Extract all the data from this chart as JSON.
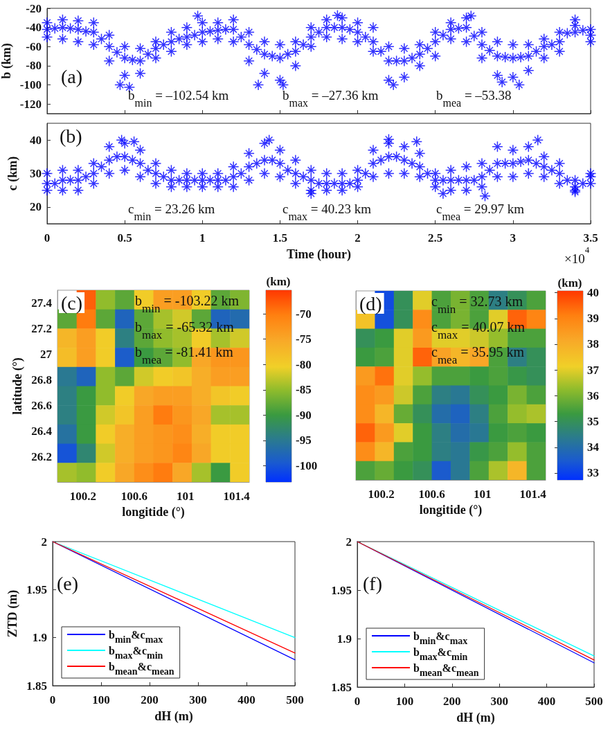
{
  "chart_data": [
    {
      "type": "scatter",
      "title": "(a)",
      "ylabel": "b (km)",
      "color": "#0000ff",
      "marker": "star",
      "xlim": [
        0,
        3.5
      ],
      "xticks": [
        0,
        0.5,
        1,
        1.5,
        2,
        2.5,
        3,
        3.5
      ],
      "ylim": [
        -130,
        -20
      ],
      "yticks": [
        -120,
        -100,
        -80,
        -60,
        -40,
        -20
      ],
      "tick_labels": "y",
      "annotations": [
        "b$_{min}$ = –102.54 km",
        "b$_{max}$ = –27.36 km",
        "b$_{mea}$ = –53.38"
      ],
      "x": [
        0,
        0,
        0,
        0.1,
        0.1,
        0.1,
        0.2,
        0.2,
        0.2,
        0.3,
        0.3,
        0.3,
        0.4,
        0.4,
        0.4,
        0.5,
        0.5,
        0.5,
        0.6,
        0.6,
        0.6,
        0.7,
        0.7,
        0.7,
        0.8,
        0.8,
        0.8,
        0.9,
        0.9,
        0.9,
        1,
        1,
        1,
        1.1,
        1.1,
        1.1,
        1.2,
        1.2,
        1.2,
        1.3,
        1.3,
        1.3,
        1.4,
        1.4,
        1.4,
        1.5,
        1.5,
        1.5,
        1.6,
        1.6,
        1.6,
        1.7,
        1.7,
        1.7,
        1.8,
        1.8,
        1.8,
        1.9,
        1.9,
        1.9,
        2,
        2,
        2,
        2.1,
        2.1,
        2.1,
        2.2,
        2.2,
        2.2,
        2.3,
        2.3,
        2.3,
        2.4,
        2.4,
        2.4,
        2.5,
        2.5,
        2.5,
        2.6,
        2.6,
        2.6,
        2.7,
        2.7,
        2.7,
        2.8,
        2.8,
        2.8,
        2.9,
        2.9,
        2.9,
        3,
        3,
        3,
        3.1,
        3.1,
        3.1,
        3.2,
        3.2,
        3.2,
        3.3,
        3.3,
        3.3,
        3.4,
        3.4,
        3.4,
        3.5,
        3.5,
        3.5,
        0.05,
        0.15,
        0.25,
        0.35,
        0.45,
        0.55,
        0.65,
        0.75,
        0.85,
        0.95,
        1.05,
        1.15,
        1.25,
        1.35,
        1.45,
        1.55,
        1.65,
        1.75,
        1.85,
        1.95,
        2.05,
        2.15,
        2.25,
        2.35,
        2.45,
        2.55,
        2.65,
        2.75,
        2.85,
        2.95,
        3.05,
        3.15,
        3.25,
        3.35,
        3.45,
        0.47,
        0.53,
        1.36,
        1.52,
        2.23,
        2.93,
        3.04,
        0.97,
        1.87,
        2.73
      ],
      "values": [
        -35,
        -42,
        -50,
        -32,
        -40,
        -52,
        -33,
        -42,
        -55,
        -35,
        -45,
        -58,
        -48,
        -60,
        -75,
        -60,
        -72,
        -90,
        -62,
        -75,
        -88,
        -55,
        -62,
        -72,
        -45,
        -55,
        -65,
        -40,
        -50,
        -58,
        -35,
        -45,
        -55,
        -35,
        -43,
        -52,
        -32,
        -42,
        -55,
        -45,
        -58,
        -75,
        -55,
        -68,
        -88,
        -58,
        -72,
        -95,
        -55,
        -65,
        -80,
        -40,
        -50,
        -60,
        -32,
        -40,
        -50,
        -30,
        -40,
        -52,
        -35,
        -45,
        -55,
        -40,
        -55,
        -65,
        -60,
        -75,
        -95,
        -62,
        -75,
        -92,
        -58,
        -68,
        -80,
        -45,
        -55,
        -70,
        -35,
        -42,
        -52,
        -30,
        -40,
        -55,
        -45,
        -58,
        -72,
        -55,
        -70,
        -90,
        -58,
        -72,
        -92,
        -58,
        -70,
        -85,
        -52,
        -60,
        -72,
        -45,
        -55,
        -65,
        -32,
        -38,
        -45,
        -42,
        -48,
        -55,
        -41,
        -41,
        -44,
        -52,
        -66,
        -74,
        -68,
        -58,
        -52,
        -48,
        -44,
        -42,
        -50,
        -63,
        -70,
        -68,
        -58,
        -45,
        -40,
        -42,
        -50,
        -65,
        -75,
        -72,
        -62,
        -48,
        -41,
        -49,
        -64,
        -71,
        -71,
        -65,
        -58,
        -46,
        -43,
        -100,
        -102.5,
        -100,
        -100,
        -100,
        -97,
        -100,
        -28,
        -27.4,
        -28
      ]
    },
    {
      "type": "scatter",
      "title": "(b)",
      "xlabel": "Time (hour)",
      "ylabel": "c (km)",
      "color": "#0000ff",
      "marker": "star",
      "xlim": [
        0,
        3.5
      ],
      "xticks": [
        0,
        0.5,
        1,
        1.5,
        2,
        2.5,
        3,
        3.5
      ],
      "ylim": [
        15,
        45
      ],
      "yticks": [
        20,
        30,
        40
      ],
      "annotations": [
        "c$_{min}$ = 23.26 km",
        "c$_{max}$ = 40.23 km",
        "c$_{mea}$ = 29.97 km",
        "×10$^{4}$"
      ],
      "x": [
        0,
        0,
        0,
        0.1,
        0.1,
        0.1,
        0.2,
        0.2,
        0.2,
        0.3,
        0.3,
        0.3,
        0.4,
        0.4,
        0.4,
        0.5,
        0.5,
        0.5,
        0.6,
        0.6,
        0.6,
        0.7,
        0.7,
        0.7,
        0.8,
        0.8,
        0.8,
        0.9,
        0.9,
        0.9,
        1,
        1,
        1,
        1.1,
        1.1,
        1.1,
        1.2,
        1.2,
        1.2,
        1.3,
        1.3,
        1.3,
        1.4,
        1.4,
        1.4,
        1.5,
        1.5,
        1.5,
        1.6,
        1.6,
        1.6,
        1.7,
        1.7,
        1.7,
        1.8,
        1.8,
        1.8,
        1.9,
        1.9,
        1.9,
        2,
        2,
        2,
        2.1,
        2.1,
        2.1,
        2.2,
        2.2,
        2.2,
        2.3,
        2.3,
        2.3,
        2.4,
        2.4,
        2.4,
        2.5,
        2.5,
        2.5,
        2.6,
        2.6,
        2.6,
        2.7,
        2.7,
        2.7,
        2.8,
        2.8,
        2.8,
        2.9,
        2.9,
        2.9,
        3,
        3,
        3,
        3.1,
        3.1,
        3.1,
        3.2,
        3.2,
        3.2,
        3.3,
        3.3,
        3.3,
        3.4,
        3.4,
        3.4,
        3.5,
        3.5,
        3.5,
        0.05,
        0.15,
        0.25,
        0.35,
        0.45,
        0.55,
        0.65,
        0.75,
        0.85,
        0.95,
        1.05,
        1.15,
        1.25,
        1.35,
        1.45,
        1.55,
        1.65,
        1.75,
        1.85,
        1.95,
        2.05,
        2.15,
        2.25,
        2.35,
        2.45,
        2.55,
        2.65,
        2.75,
        2.85,
        2.95,
        3.05,
        3.15,
        3.25,
        3.35,
        3.45,
        0.48,
        0.56,
        1.43,
        2.2,
        2.38,
        3.16,
        1.7,
        2.55,
        2.82,
        3.4
      ],
      "values": [
        25,
        27,
        30,
        25,
        28,
        31,
        25,
        28,
        31,
        27,
        30,
        33,
        30,
        34,
        38,
        31,
        35,
        39,
        29,
        33,
        37,
        27,
        30,
        33,
        26,
        28,
        31,
        26,
        28,
        30,
        26,
        28,
        30,
        26,
        28,
        30,
        26,
        29,
        32,
        28,
        32,
        36,
        30,
        34,
        39,
        29,
        33,
        37,
        27,
        30,
        34,
        25,
        28,
        31,
        25,
        27,
        30,
        25,
        27,
        30,
        26,
        28,
        31,
        29,
        33,
        37,
        30,
        35,
        39,
        30,
        34,
        38,
        29,
        32,
        36,
        26,
        28,
        30,
        25,
        28,
        31,
        25,
        28,
        32,
        26,
        29,
        33,
        29,
        33,
        38,
        29,
        33,
        37,
        30,
        34,
        38,
        29,
        32,
        35,
        27,
        30,
        33,
        25,
        26,
        28,
        27,
        29,
        30,
        27,
        28,
        29,
        32,
        35,
        34,
        31,
        29,
        28,
        28,
        28,
        28,
        30,
        33,
        34,
        31,
        29,
        27,
        27,
        27,
        30,
        34,
        35,
        33,
        30,
        28,
        28,
        28,
        31,
        33,
        33.5,
        33,
        31,
        28,
        27,
        40,
        39.5,
        40,
        40.2,
        39.5,
        40,
        24,
        24,
        23.3,
        24.5
      ]
    },
    {
      "type": "heatmap",
      "title": "(c)",
      "xlabel": "longitide (°)",
      "ylabel": "latitude (°)",
      "clabel": "(km)",
      "xlim": [
        100,
        101.5
      ],
      "xticks": [
        100.2,
        100.6,
        101,
        101.4
      ],
      "ylim": [
        26,
        27.5
      ],
      "yticks": [
        26.2,
        26.4,
        26.6,
        26.8,
        27,
        27.2,
        27.4
      ],
      "clim": [
        -103.22,
        -65.32
      ],
      "cticks": [
        -100,
        -95,
        -90,
        -85,
        -80,
        -75,
        -70
      ],
      "annotations": [
        "b$_{min}$ = -103.22 km",
        "b$_{max}$ = -65.32 km",
        "b$_{mea}$ = -81.41 km"
      ],
      "cells": [
        [
          null,
          -68,
          -85,
          -88,
          -80,
          -74,
          -74,
          -80,
          -88,
          -86
        ],
        [
          -88,
          -70,
          -88,
          -98,
          -88,
          -84,
          -82,
          -88,
          -98,
          -97
        ],
        [
          -77,
          -74,
          -80,
          -94,
          -88,
          -85,
          -84,
          -80,
          -84,
          -82
        ],
        [
          -78,
          -74,
          -80,
          -99,
          -90,
          -88,
          -85,
          -75,
          -73,
          -73
        ],
        [
          -95,
          -98,
          -85,
          -88,
          -82,
          -80,
          -79,
          -76,
          -74,
          -74
        ],
        [
          -94,
          -90,
          -85,
          -80,
          -75,
          -74,
          -74,
          -76,
          -79,
          -80
        ],
        [
          -94,
          -90,
          -82,
          -79,
          -74,
          -70,
          -73,
          -75,
          -84,
          -84
        ],
        [
          -96,
          -90,
          -80,
          -76,
          -74,
          -73,
          -72,
          -76,
          -80,
          -80
        ],
        [
          -100,
          -93,
          -82,
          -76,
          -74,
          -73,
          -71,
          -75,
          -80,
          -80
        ],
        [
          -84,
          -85,
          -80,
          -75,
          -72,
          -70,
          -75,
          -84,
          -90,
          -80
        ]
      ]
    },
    {
      "type": "heatmap",
      "title": "(d)",
      "xlabel": "longitide (°)",
      "clabel": "(km)",
      "xlim": [
        100,
        101.5
      ],
      "xticks": [
        100.2,
        100.6,
        101,
        101.4
      ],
      "ylim": [
        26,
        27.5
      ],
      "yticks": [
        26.2,
        26.4,
        26.6,
        26.8,
        27,
        27.2,
        27.4
      ],
      "tick_labels": "x",
      "clim": [
        32.73,
        40.07
      ],
      "cticks": [
        33,
        34,
        35,
        36,
        37,
        38,
        39,
        40
      ],
      "annotations": [
        "c$_{min}$ = 32.73 km",
        "c$_{max}$ = 40.07 km",
        "c$_{mea}$ = 35.95 km"
      ],
      "cells": [
        [
          null,
          33.2,
          35,
          37,
          35.5,
          36,
          35.5,
          34.5,
          35,
          35.5
        ],
        [
          37.5,
          33.3,
          35,
          38.8,
          35.5,
          36,
          35.5,
          37,
          39.5,
          39
        ],
        [
          35,
          35.3,
          37,
          38.5,
          37,
          37,
          36.8,
          36.3,
          35.5,
          35.5
        ],
        [
          35.3,
          35.5,
          37,
          39.5,
          38.3,
          37.8,
          38.2,
          35.5,
          34.5,
          35
        ],
        [
          38.5,
          39.3,
          37,
          36.3,
          35.5,
          35.5,
          35.3,
          35.5,
          35.2,
          35
        ],
        [
          38.8,
          38.5,
          36.8,
          35.5,
          34.5,
          34.3,
          35,
          35.3,
          36,
          35.5
        ],
        [
          38.8,
          37.8,
          35.8,
          35,
          34,
          33.7,
          34.5,
          35.5,
          36.3,
          36.5
        ],
        [
          39.5,
          38.5,
          37,
          35.3,
          34.5,
          34,
          34.3,
          35.3,
          35.5,
          35.3
        ],
        [
          38.8,
          37.8,
          35.5,
          35.3,
          34.5,
          34.3,
          35.2,
          35.5,
          36.3,
          35.5
        ],
        [
          35.5,
          35.8,
          35.3,
          35,
          33.5,
          34.3,
          35.5,
          36.5,
          37.8,
          35.5
        ]
      ]
    },
    {
      "type": "line",
      "title": "(e)",
      "xlabel": "dH (m)",
      "ylabel": "ZTD (m)",
      "x": [
        0,
        500
      ],
      "xlim": [
        0,
        500
      ],
      "xticks": [
        0,
        100,
        200,
        300,
        400,
        500
      ],
      "ylim": [
        1.85,
        2
      ],
      "yticks": [
        1.85,
        1.9,
        1.95,
        2
      ],
      "legend": "bottom left",
      "series": [
        {
          "name": "b$_{min}$&c$_{max}$",
          "color": "#0000ff",
          "values": [
            2,
            1.877
          ]
        },
        {
          "name": "b$_{max}$&c$_{min}$",
          "color": "#00ffff",
          "values": [
            2,
            1.9
          ]
        },
        {
          "name": "b$_{mean}$&c$_{mean}$",
          "color": "#ff0000",
          "values": [
            2,
            1.884
          ]
        }
      ]
    },
    {
      "type": "line",
      "title": "(f)",
      "xlabel": "dH (m)",
      "x": [
        0,
        500
      ],
      "xlim": [
        0,
        500
      ],
      "xticks": [
        0,
        100,
        200,
        300,
        400,
        500
      ],
      "ylim": [
        1.85,
        2
      ],
      "yticks": [
        1.85,
        1.9,
        1.95,
        2
      ],
      "legend": "bottom left",
      "series": [
        {
          "name": "b$_{min}$&c$_{max}$",
          "color": "#0000ff",
          "values": [
            2,
            1.875
          ]
        },
        {
          "name": "b$_{max}$&c$_{min}$",
          "color": "#00ffff",
          "values": [
            2,
            1.882
          ]
        },
        {
          "name": "b$_{mean}$&c$_{mean}$",
          "color": "#ff0000",
          "values": [
            2,
            1.878
          ]
        }
      ]
    }
  ]
}
